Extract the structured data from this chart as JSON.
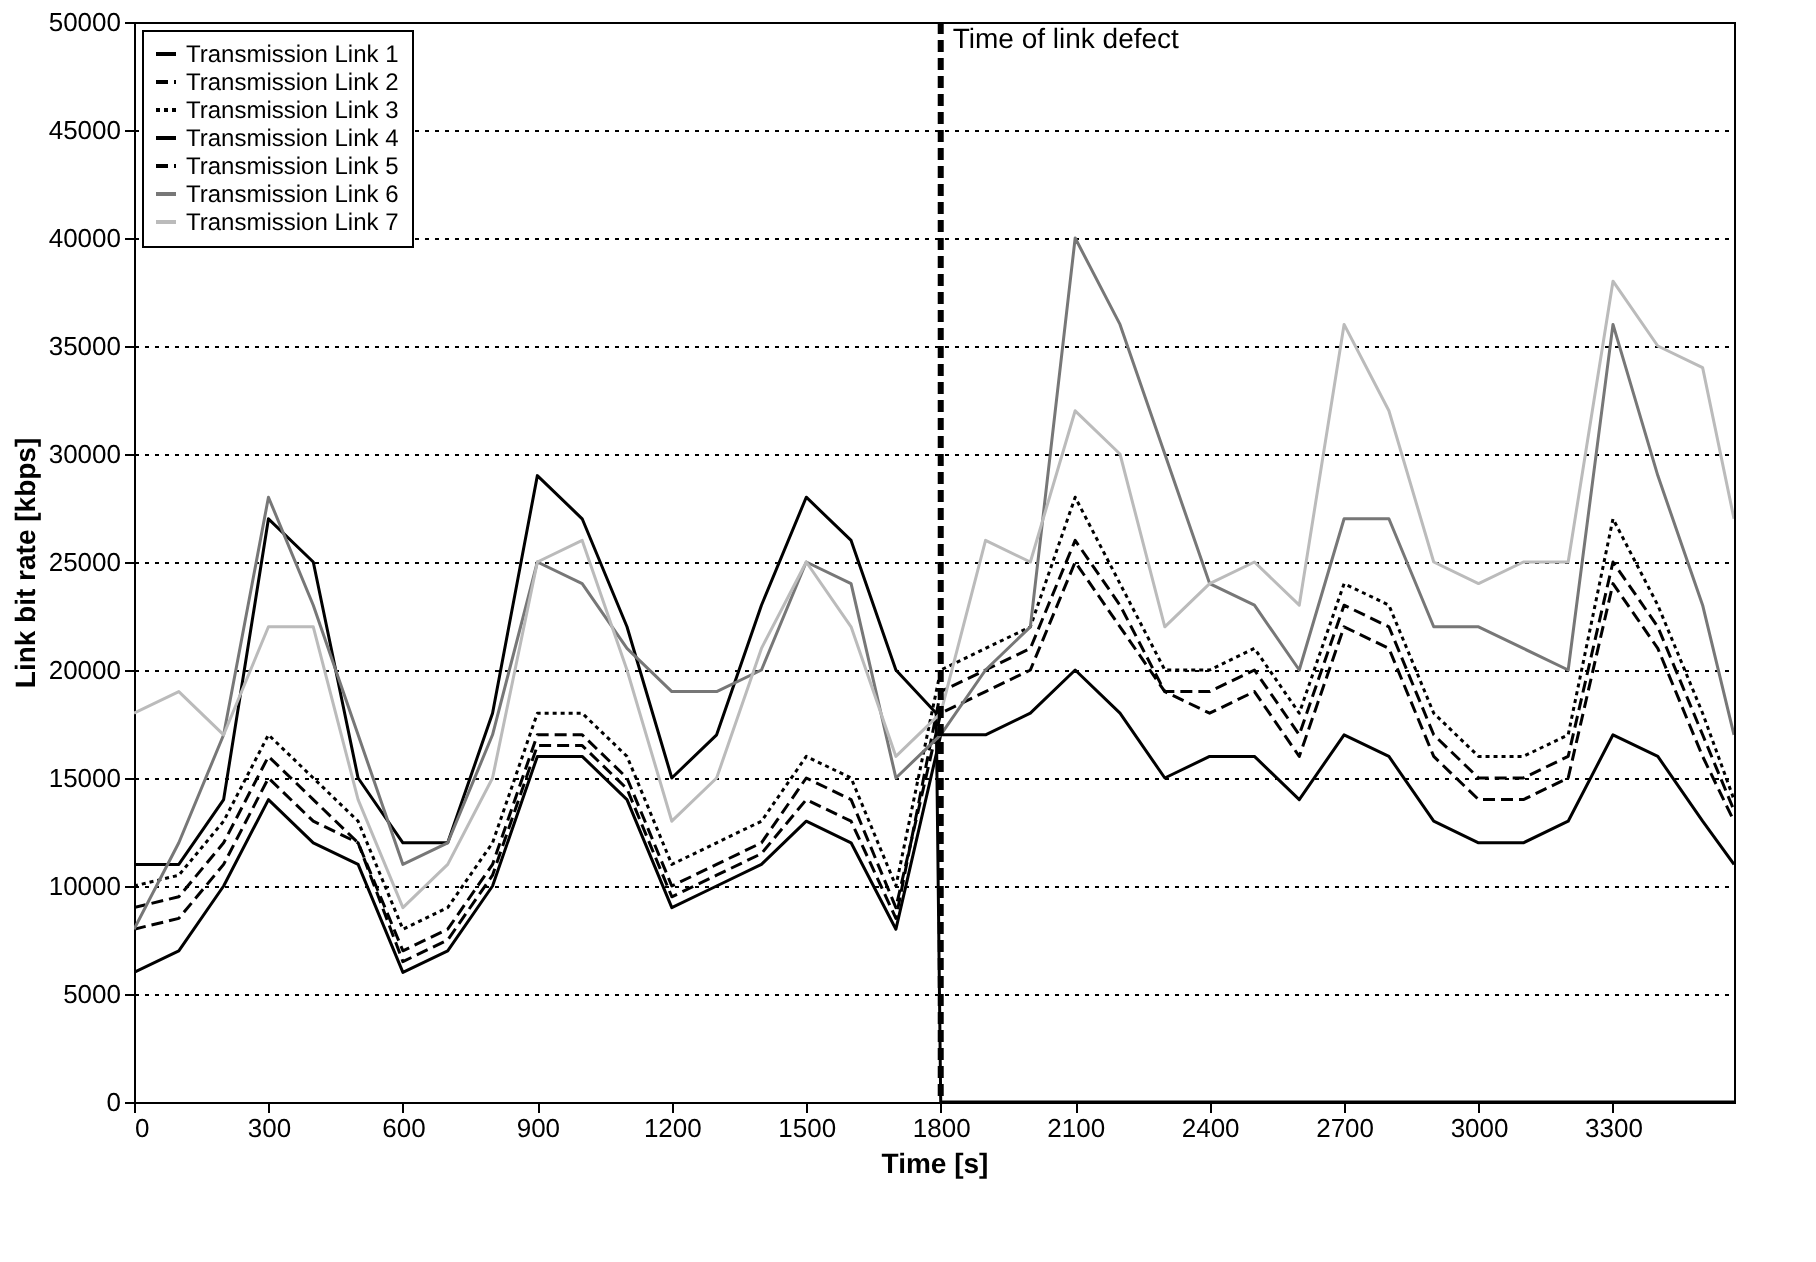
{
  "chart_data": {
    "type": "line",
    "xlabel": "Time [s]",
    "ylabel": "Link bit rate [kbps]",
    "x": [
      0,
      100,
      200,
      300,
      400,
      500,
      600,
      700,
      800,
      900,
      1000,
      1100,
      1200,
      1300,
      1400,
      1500,
      1600,
      1700,
      1800,
      1900,
      2000,
      2100,
      2200,
      2300,
      2400,
      2500,
      2600,
      2700,
      2800,
      2900,
      3000,
      3100,
      3200,
      3300,
      3400,
      3500,
      3570
    ],
    "xlim": [
      0,
      3570
    ],
    "xticks": [
      0,
      300,
      600,
      900,
      1200,
      1500,
      1800,
      2100,
      2400,
      2700,
      3000,
      3300
    ],
    "ylim": [
      0,
      50000
    ],
    "yticks": [
      0,
      5000,
      10000,
      15000,
      20000,
      25000,
      30000,
      35000,
      40000,
      45000,
      50000
    ],
    "grid": "y",
    "legend": "top left",
    "series": [
      {
        "name": "Transmission Link 1",
        "color": "#000000",
        "line_style": "solid",
        "values": [
          6000,
          7000,
          10000,
          14000,
          12000,
          11000,
          6000,
          7000,
          10000,
          16000,
          16000,
          14000,
          9000,
          10000,
          11000,
          13000,
          12000,
          8000,
          17000,
          17000,
          18000,
          20000,
          18000,
          15000,
          16000,
          16000,
          14000,
          17000,
          16000,
          13000,
          12000,
          12000,
          13000,
          17000,
          16000,
          13000,
          11000
        ]
      },
      {
        "name": "Transmission Link 2",
        "color": "#000000",
        "line_style": "dashed",
        "values": [
          9000,
          9500,
          12000,
          16000,
          14000,
          12000,
          7000,
          8000,
          11000,
          17000,
          17000,
          15000,
          10000,
          11000,
          12000,
          15000,
          14000,
          9000,
          18000,
          19000,
          20000,
          25000,
          22000,
          19000,
          18000,
          19000,
          16000,
          22000,
          21000,
          16000,
          14000,
          14000,
          15000,
          24000,
          21000,
          16000,
          13000
        ]
      },
      {
        "name": "Transmission Link 3",
        "color": "#000000",
        "line_style": "dotted",
        "values": [
          10000,
          10500,
          13000,
          17000,
          15000,
          13000,
          8000,
          9000,
          12000,
          18000,
          18000,
          16000,
          11000,
          12000,
          13000,
          16000,
          15000,
          10000,
          20000,
          21000,
          22000,
          28000,
          24000,
          20000,
          20000,
          21000,
          18000,
          24000,
          23000,
          18000,
          16000,
          16000,
          17000,
          27000,
          23000,
          18000,
          14000
        ]
      },
      {
        "name": "Transmission Link 4",
        "color": "#000000",
        "line_style": "solid",
        "x": [
          0,
          100,
          200,
          300,
          400,
          500,
          600,
          700,
          800,
          900,
          1000,
          1100,
          1200,
          1300,
          1400,
          1500,
          1600,
          1700,
          1790,
          1800,
          3570
        ],
        "values": [
          11000,
          11000,
          14000,
          27000,
          25000,
          15000,
          12000,
          12000,
          18000,
          29000,
          27000,
          22000,
          15000,
          17000,
          23000,
          28000,
          26000,
          20000,
          18000,
          0,
          0
        ]
      },
      {
        "name": "Transmission Link 5",
        "color": "#000000",
        "line_style": "dashed",
        "values": [
          8000,
          8500,
          11000,
          15000,
          13000,
          12000,
          6500,
          7500,
          10500,
          16500,
          16500,
          14500,
          9500,
          10500,
          11500,
          14000,
          13000,
          8500,
          19000,
          20000,
          21000,
          26000,
          23000,
          19000,
          19000,
          20000,
          17000,
          23000,
          22000,
          17000,
          15000,
          15000,
          16000,
          25000,
          22000,
          17000,
          13500
        ]
      },
      {
        "name": "Transmission Link 6",
        "color": "#777777",
        "line_style": "solid",
        "values": [
          8000,
          12000,
          17000,
          28000,
          23000,
          17000,
          11000,
          12000,
          17000,
          25000,
          24000,
          21000,
          19000,
          19000,
          20000,
          25000,
          24000,
          15000,
          17000,
          20000,
          22000,
          40000,
          36000,
          30000,
          24000,
          23000,
          20000,
          27000,
          27000,
          22000,
          22000,
          21000,
          20000,
          36000,
          29000,
          23000,
          17000
        ]
      },
      {
        "name": "Transmission Link 7",
        "color": "#bbbbbb",
        "line_style": "solid",
        "values": [
          18000,
          19000,
          17000,
          22000,
          22000,
          14000,
          9000,
          11000,
          15000,
          25000,
          26000,
          20000,
          13000,
          15000,
          21000,
          25000,
          22000,
          16000,
          18000,
          26000,
          25000,
          32000,
          30000,
          22000,
          24000,
          25000,
          23000,
          36000,
          32000,
          25000,
          24000,
          25000,
          25000,
          38000,
          35000,
          34000,
          27000
        ]
      }
    ],
    "ref_lines": [
      {
        "axis": "x",
        "value": 1800,
        "label": "Time of link defect",
        "line_style": "dashed",
        "color": "#000000"
      }
    ]
  }
}
